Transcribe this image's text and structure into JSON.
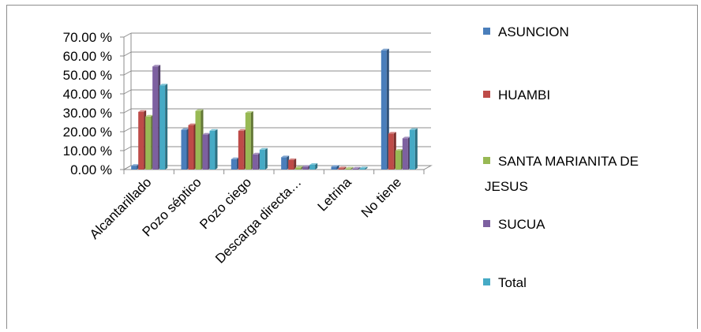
{
  "chart_data": {
    "type": "bar",
    "style": "3d-clustered-column",
    "categories": [
      "Alcantarillado",
      "Pozo séptico",
      "Pozo ciego",
      "Descarga directa…",
      "Letrina",
      "No tiene"
    ],
    "y_tick_labels": [
      "0.00 %",
      "10.00 %",
      "20.00 %",
      "30.00 %",
      "40.00 %",
      "50.00 %",
      "60.00 %",
      "70.00 %"
    ],
    "ylim": [
      0,
      70
    ],
    "grid": true,
    "legend_position": "right",
    "series": [
      {
        "name": "ASUNCION",
        "color": "#4a7ebb",
        "values": [
          2.0,
          21.0,
          5.5,
          6.5,
          1.5,
          63.0
        ]
      },
      {
        "name": "HUAMBI",
        "color": "#be4b48",
        "values": [
          30.5,
          23.5,
          20.5,
          5.0,
          0.7,
          19.0
        ]
      },
      {
        "name": "SANTA MARIANITA DE JESUS",
        "color": "#98b954",
        "values": [
          28.0,
          31.0,
          30.0,
          1.0,
          0.5,
          10.0
        ]
      },
      {
        "name": "SUCUA",
        "color": "#7d60a0",
        "values": [
          54.5,
          18.5,
          8.0,
          1.5,
          0.5,
          16.5
        ]
      },
      {
        "name": "Total",
        "color": "#46aac5",
        "values": [
          44.5,
          20.5,
          10.5,
          2.5,
          0.7,
          21.0
        ]
      }
    ]
  }
}
